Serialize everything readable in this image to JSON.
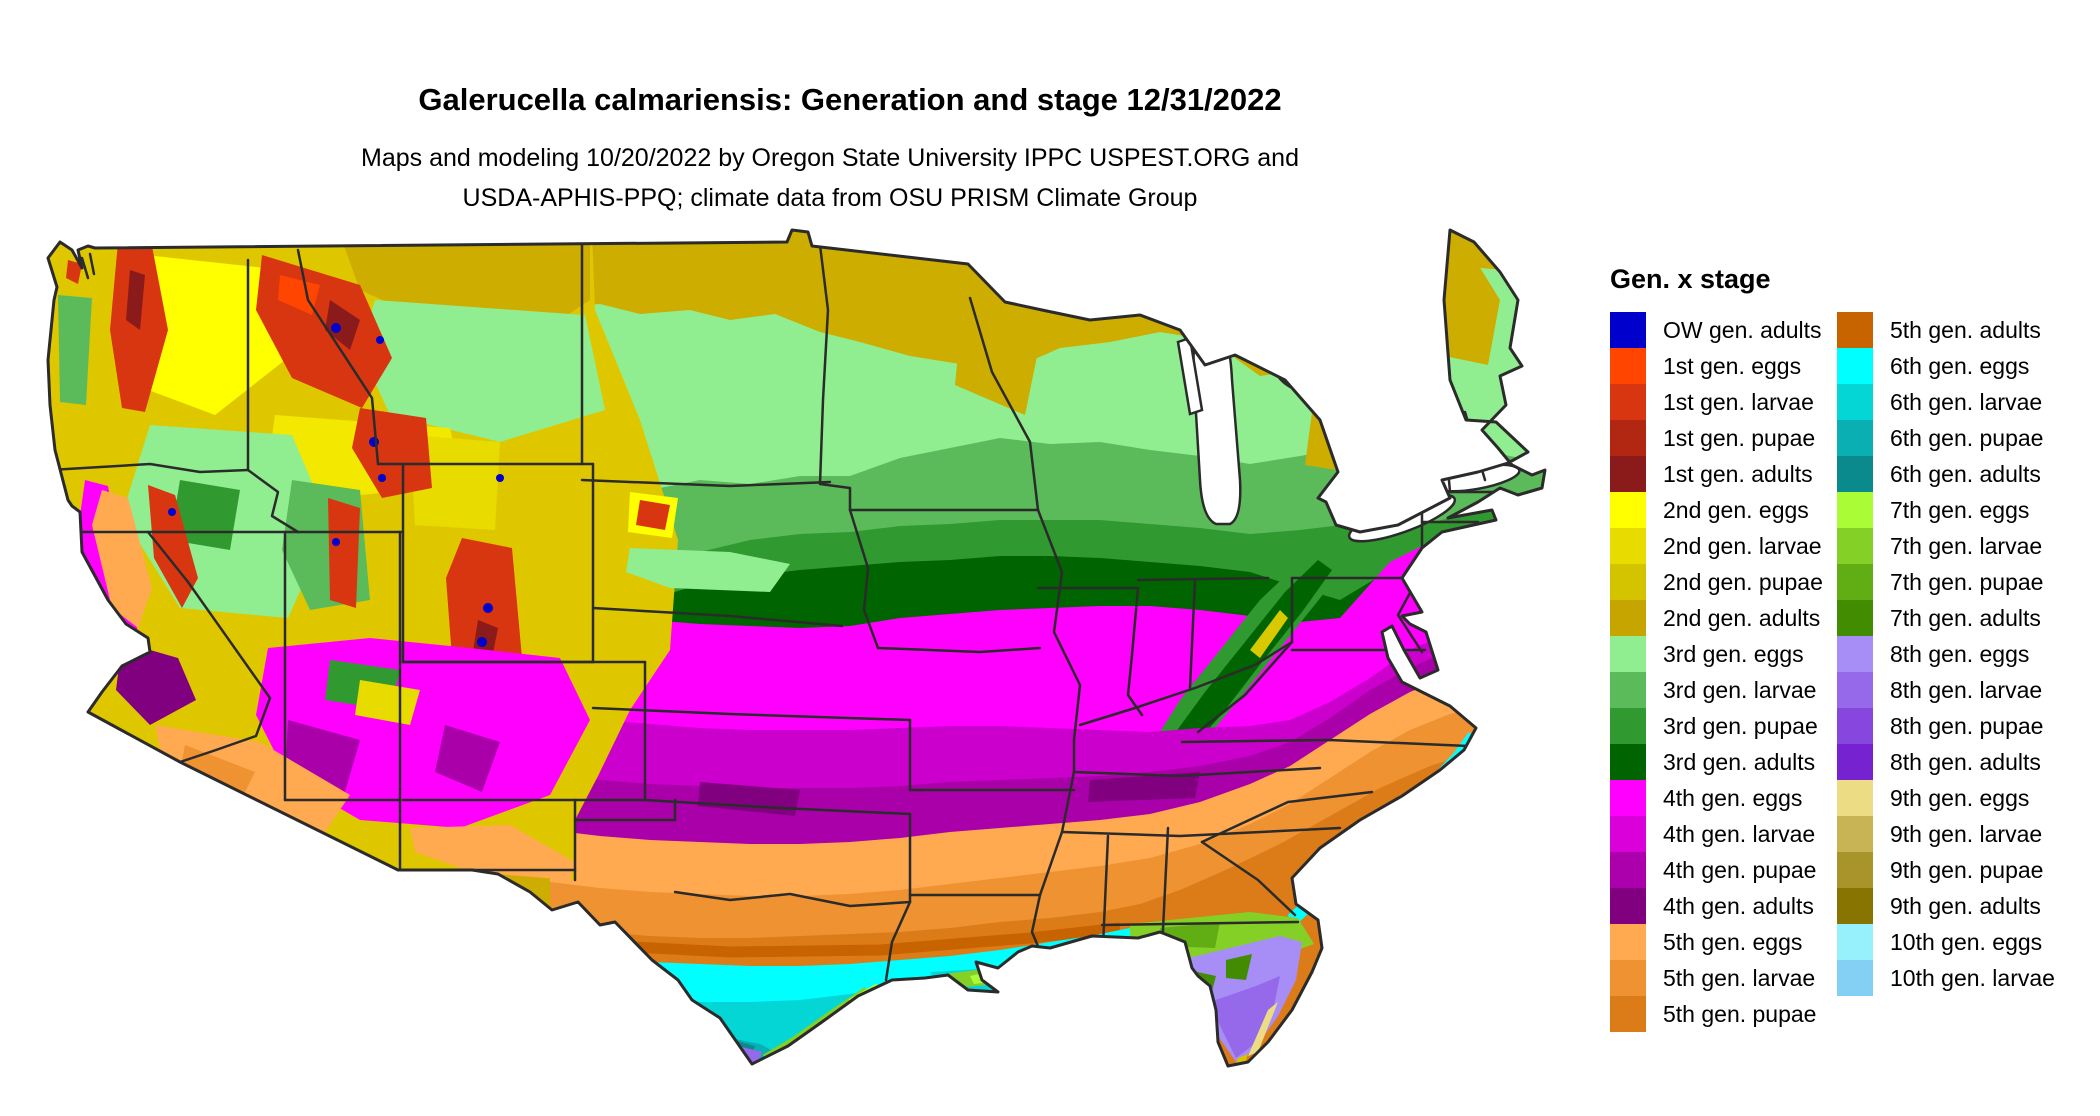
{
  "header": {
    "title": "Galerucella calmariensis: Generation and stage 12/31/2022",
    "subtitle_line1": "Maps and modeling 10/20/2022 by Oregon State University IPPC USPEST.ORG and",
    "subtitle_line2": "USDA-APHIS-PPQ; climate data from OSU PRISM Climate Group"
  },
  "legend": {
    "title": "Gen. x stage",
    "columns": [
      {
        "entries": [
          {
            "label": "OW gen. adults",
            "color": "#0000CC"
          },
          {
            "label": "1st gen. eggs",
            "color": "#FF4500"
          },
          {
            "label": "1st gen. larvae",
            "color": "#D83511"
          },
          {
            "label": "1st gen. pupae",
            "color": "#B22711"
          },
          {
            "label": "1st gen. adults",
            "color": "#8B1A1A"
          },
          {
            "label": "2nd gen. eggs",
            "color": "#FFFF00"
          },
          {
            "label": "2nd gen. larvae",
            "color": "#E8DB00"
          },
          {
            "label": "2nd gen. pupae",
            "color": "#D4C400"
          },
          {
            "label": "2nd gen. adults",
            "color": "#C7A500"
          },
          {
            "label": "3rd gen. eggs",
            "color": "#90EE90"
          },
          {
            "label": "3rd gen. larvae",
            "color": "#5BBB5B"
          },
          {
            "label": "3rd gen. pupae",
            "color": "#309A30"
          },
          {
            "label": "3rd gen. adults",
            "color": "#006400"
          },
          {
            "label": "4th gen. eggs",
            "color": "#FF00FF"
          },
          {
            "label": "4th gen. larvae",
            "color": "#D900D9"
          },
          {
            "label": "4th gen. pupae",
            "color": "#AC00AC"
          },
          {
            "label": "4th gen. adults",
            "color": "#800080"
          },
          {
            "label": "5th gen. eggs",
            "color": "#FFA950"
          },
          {
            "label": "5th gen. larvae",
            "color": "#EE9232"
          },
          {
            "label": "5th gen. pupae",
            "color": "#DC7C18"
          }
        ]
      },
      {
        "entries": [
          {
            "label": "5th gen. adults",
            "color": "#C86400"
          },
          {
            "label": "6th gen. eggs",
            "color": "#00FFFF"
          },
          {
            "label": "6th gen. larvae",
            "color": "#04D6D6"
          },
          {
            "label": "6th gen. pupae",
            "color": "#09AFB3"
          },
          {
            "label": "6th gen. adults",
            "color": "#0B8A8E"
          },
          {
            "label": "7th gen. eggs",
            "color": "#A9FC36"
          },
          {
            "label": "7th gen. larvae",
            "color": "#85D026"
          },
          {
            "label": "7th gen. pupae",
            "color": "#61AE14"
          },
          {
            "label": "7th gen. adults",
            "color": "#418C00"
          },
          {
            "label": "8th gen. eggs",
            "color": "#A78DF6"
          },
          {
            "label": "8th gen. larvae",
            "color": "#9669EB"
          },
          {
            "label": "8th gen. pupae",
            "color": "#8747DE"
          },
          {
            "label": "8th gen. adults",
            "color": "#7722D0"
          },
          {
            "label": "9th gen. eggs",
            "color": "#ECDC84"
          },
          {
            "label": "9th gen. larvae",
            "color": "#C9B455"
          },
          {
            "label": "9th gen. pupae",
            "color": "#A8942B"
          },
          {
            "label": "9th gen. adults",
            "color": "#887400"
          },
          {
            "label": "10th gen. eggs",
            "color": "#97F1FD"
          },
          {
            "label": "10th gen. larvae",
            "color": "#84CFF4"
          }
        ]
      }
    ]
  },
  "map": {
    "region": "Continental United States",
    "border_color": "#2b2b2b",
    "water_color": "#ffffff"
  }
}
